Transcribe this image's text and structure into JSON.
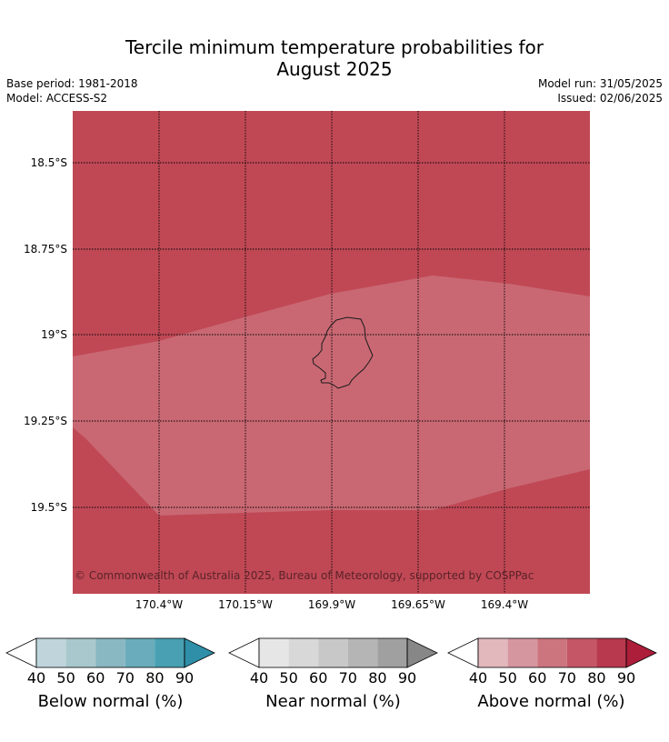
{
  "title": {
    "line1": "Tercile minimum temperature probabilities for",
    "line2": "August 2025"
  },
  "meta": {
    "base_period": "Base period: 1981-2018",
    "model": "Model: ACCESS-S2",
    "model_run": "Model run: 31/05/2025",
    "issued": "Issued: 02/06/2025"
  },
  "map": {
    "lat_labels": [
      "18.5°S",
      "18.75°S",
      "19°S",
      "19.25°S",
      "19.5°S"
    ],
    "lon_labels": [
      "170.4°W",
      "170.15°W",
      "169.9°W",
      "169.65°W",
      "169.4°W"
    ],
    "copyright": "© Commonwealth of Australia 2025, Bureau of Meteorology, supported by COSPPac",
    "colors": {
      "above_70_80": "#c04855",
      "above_60_70": "#c96873",
      "coastline": "#1a1a1a",
      "grid": "#000000"
    }
  },
  "colorbars": [
    {
      "label": "Below normal (%)",
      "ticks": [
        "40",
        "50",
        "60",
        "70",
        "80",
        "90"
      ],
      "colors": [
        "#ffffff",
        "#bfd5db",
        "#a8c8cd",
        "#89b7c2",
        "#6aacbb",
        "#48a0b2",
        "#2f8fa8"
      ]
    },
    {
      "label": "Near normal (%)",
      "ticks": [
        "40",
        "50",
        "60",
        "70",
        "80",
        "90"
      ],
      "colors": [
        "#ffffff",
        "#e6e6e6",
        "#d8d8d8",
        "#c8c8c8",
        "#b5b5b5",
        "#a0a0a0",
        "#878787"
      ]
    },
    {
      "label": "Above normal (%)",
      "ticks": [
        "40",
        "50",
        "60",
        "70",
        "80",
        "90"
      ],
      "colors": [
        "#ffffff",
        "#e2b8bd",
        "#d6969f",
        "#cc757f",
        "#c45666",
        "#b8384e",
        "#ac1e3a"
      ]
    }
  ]
}
